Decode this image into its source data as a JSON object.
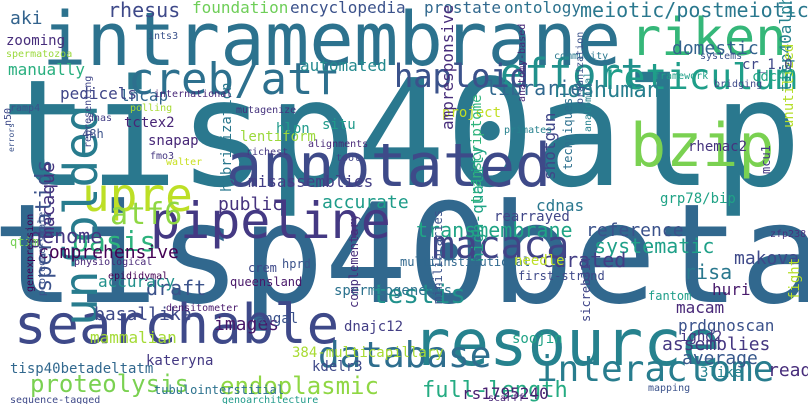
{
  "title": "",
  "words": [
    {
      "text": "tisp40alpha",
      "color": "#2a788e"
    },
    {
      "text": "tisp40beta",
      "color": "#31688e"
    },
    {
      "text": "intramembrane",
      "color": "#2c728e"
    },
    {
      "text": "annotated",
      "color": "#3e4a89"
    },
    {
      "text": "resource",
      "color": "#26828e"
    },
    {
      "text": "searchable",
      "color": "#3e4989"
    },
    {
      "text": "pipeline",
      "color": "#443983"
    },
    {
      "text": "creb/atf",
      "color": "#2d708e"
    },
    {
      "text": "bzip",
      "color": "#7ad151"
    },
    {
      "text": "riken",
      "color": "#35b779"
    },
    {
      "text": "upre",
      "color": "#bddf26"
    },
    {
      "text": "macaca",
      "color": "#414487"
    },
    {
      "text": "database",
      "color": "#2e6e8e"
    },
    {
      "text": "interactome",
      "color": "#287d8e"
    },
    {
      "text": "unfolded",
      "color": "#287c8e"
    },
    {
      "text": "effort",
      "color": "#21918c"
    },
    {
      "text": "reticulum",
      "color": "#1f9e89"
    },
    {
      "text": "haploid",
      "color": "#3b528b"
    },
    {
      "text": "atf6",
      "color": "#8fd744"
    },
    {
      "text": "full-length",
      "color": "#25ab82"
    },
    {
      "text": "endoplasmic",
      "color": "#8fd744"
    },
    {
      "text": "proteolysis",
      "color": "#7ad151"
    },
    {
      "text": "oasis",
      "color": "#2db27d"
    },
    {
      "text": "testis",
      "color": "#21918c"
    },
    {
      "text": "spermatids",
      "color": "#3b528b"
    },
    {
      "text": "transmembrane",
      "color": "#20a486"
    },
    {
      "text": "prostate",
      "color": "#31688e"
    },
    {
      "text": "meiotic/postmeiotic",
      "color": "#2a788e"
    },
    {
      "text": "genome",
      "color": "#453781"
    },
    {
      "text": "foundation",
      "color": "#6ece58"
    },
    {
      "text": "encyclopedia",
      "color": "#3b528b"
    },
    {
      "text": "ontology",
      "color": "#2c728e"
    },
    {
      "text": "domestic",
      "color": "#33638d"
    },
    {
      "text": "libraries",
      "color": "#31688e"
    },
    {
      "text": "nonhuman",
      "color": "#277f8e"
    },
    {
      "text": "automated",
      "color": "#23898e"
    },
    {
      "text": "manually",
      "color": "#29af7f"
    },
    {
      "text": "comprehensive",
      "color": "#440154"
    },
    {
      "text": "systematic",
      "color": "#1fa088"
    },
    {
      "text": "curated",
      "color": "#433e85"
    },
    {
      "text": "accurate",
      "color": "#1e9c89"
    },
    {
      "text": "misassemblies",
      "color": "#433e85"
    },
    {
      "text": "reference",
      "color": "#3b528b"
    },
    {
      "text": "spermiogenesis",
      "color": "#2c728e"
    },
    {
      "text": "macaque",
      "color": "#46337e"
    },
    {
      "text": "hybridization",
      "color": "#2a788e"
    },
    {
      "text": "lentiform",
      "color": "#9bd93c"
    },
    {
      "text": "public",
      "color": "#46337e"
    },
    {
      "text": "draft",
      "color": "#3b528b"
    },
    {
      "text": "accuracy",
      "color": "#21918c"
    },
    {
      "text": "images",
      "color": "#48186a"
    },
    {
      "text": "mammalian",
      "color": "#a5db36"
    },
    {
      "text": "basallike",
      "color": "#3e4a89"
    },
    {
      "text": "tisp40betadeltatm",
      "color": "#31688e"
    },
    {
      "text": "kateryna",
      "color": "#443983"
    },
    {
      "text": "assemblies",
      "color": "#453781"
    },
    {
      "text": "average",
      "color": "#38598c"
    },
    {
      "text": "read",
      "color": "#472d7b"
    },
    {
      "text": "rs1795240",
      "color": "#481f70"
    },
    {
      "text": "tisp40alphadeltatm",
      "color": "#26828e"
    },
    {
      "text": "rhesus",
      "color": "#3e4989"
    },
    {
      "text": "haploid",
      "color": "#3b528b"
    },
    {
      "text": "lncap",
      "color": "#32658e"
    },
    {
      "text": "pedicels",
      "color": "#404688"
    },
    {
      "text": "tctex2",
      "color": "#482576"
    },
    {
      "text": "snapap",
      "color": "#482878"
    },
    {
      "text": "hlpn",
      "color": "#1f9a8a"
    },
    {
      "text": "situ",
      "color": "#1f9a8a"
    },
    {
      "text": "project",
      "color": "#c2df23"
    },
    {
      "text": "ampresponsive",
      "color": "#472d7b"
    },
    {
      "text": "transcriptome",
      "color": "#2fb47c"
    },
    {
      "text": "high-quality",
      "color": "#20a486"
    },
    {
      "text": "rearrayed",
      "color": "#404688"
    },
    {
      "text": "cdnas",
      "color": "#2a778e"
    },
    {
      "text": "shotgun",
      "color": "#404688"
    },
    {
      "text": "techniques",
      "color": "#2d708e"
    },
    {
      "text": "rhemac2",
      "color": "#46337e"
    },
    {
      "text": "grp78/bip",
      "color": "#20a386"
    },
    {
      "text": "unutilized",
      "color": "#b5de2b"
    },
    {
      "text": "cr_1.0",
      "color": "#3f4788"
    },
    {
      "text": "cdc47",
      "color": "#21a685"
    },
    {
      "text": "aki",
      "color": "#33638d"
    },
    {
      "text": "zooming",
      "color": "#472d7b"
    },
    {
      "text": "qtim",
      "color": "#75d054"
    },
    {
      "text": "huri",
      "color": "#481a6c"
    },
    {
      "text": "risa",
      "color": "#2a788e"
    },
    {
      "text": "makova",
      "color": "#3e4989"
    },
    {
      "text": "macam",
      "color": "#482878"
    },
    {
      "text": "prdgnoscan",
      "color": "#3b528b"
    },
    {
      "text": "ighd2",
      "color": "#453781"
    },
    {
      "text": "sicreb314",
      "color": "#404688"
    },
    {
      "text": "soojin",
      "color": "#20a386"
    },
    {
      "text": "dnajc12",
      "color": "#433e85"
    },
    {
      "text": "angal",
      "color": "#3b528b"
    },
    {
      "text": "kdelr3",
      "color": "#3e4989"
    },
    {
      "text": "384-multicapillary",
      "color": "#a8db34"
    },
    {
      "text": "complementary",
      "color": "#472d7b"
    },
    {
      "text": "minilibraries",
      "color": "#3b528b"
    },
    {
      "text": "multiinstitutional",
      "color": "#31688e"
    },
    {
      "text": "crem",
      "color": "#3e4989"
    },
    {
      "text": "hprd",
      "color": "#3b528b"
    },
    {
      "text": "queensland",
      "color": "#481769"
    },
    {
      "text": "3like",
      "color": "#26828e"
    },
    {
      "text": "fight",
      "color": "#b5de2b"
    },
    {
      "text": "needle",
      "color": "#bddf26"
    },
    {
      "text": "first-strand",
      "color": "#3e4989"
    },
    {
      "text": "fantom",
      "color": "#1f9e89"
    },
    {
      "text": "sequence-tagged",
      "color": "#3e4989"
    },
    {
      "text": "tubulointerstitial",
      "color": "#2c728e"
    },
    {
      "text": "genoarchitecture",
      "color": "#1f9a8a"
    },
    {
      "text": "scarff",
      "color": "#482576"
    },
    {
      "text": "mapping",
      "color": "#3b528b"
    },
    {
      "text": "genexpression",
      "color": "#440154"
    },
    {
      "text": "proteome-scale",
      "color": "#3b528b"
    },
    {
      "text": "ints3",
      "color": "#3b528b"
    },
    {
      "text": "spermatozoa",
      "color": "#9bd93c"
    },
    {
      "text": "international",
      "color": "#482878"
    },
    {
      "text": "polling",
      "color": "#a8db34"
    },
    {
      "text": "fmo3",
      "color": "#453781"
    },
    {
      "text": "walter",
      "color": "#c8e020"
    },
    {
      "text": "mutagenize",
      "color": "#46337e"
    },
    {
      "text": "richest",
      "color": "#453781"
    },
    {
      "text": "alignments",
      "color": "#482878"
    },
    {
      "text": "tool",
      "color": "#414487"
    },
    {
      "text": "community",
      "color": "#2a788e"
    },
    {
      "text": "primates",
      "color": "#26828e"
    },
    {
      "text": "anatomy-based",
      "color": "#482878"
    },
    {
      "text": "organization",
      "color": "#3b528b"
    },
    {
      "text": "anatomical",
      "color": "#26828e"
    },
    {
      "text": "framework",
      "color": "#1fa088"
    },
    {
      "text": "bridging",
      "color": "#3e4989"
    },
    {
      "text": "systems",
      "color": "#3b528b"
    },
    {
      "text": "ramp4",
      "color": "#3b528b"
    },
    {
      "text": "n50",
      "color": "#3e4989"
    },
    {
      "text": "errors",
      "color": "#3b528b"
    },
    {
      "text": "physiological",
      "color": "#482878"
    },
    {
      "text": "epididymal",
      "color": "#440154"
    },
    {
      "text": "densitometer",
      "color": "#481a6c"
    },
    {
      "text": "zfp238",
      "color": "#46337e"
    },
    {
      "text": "mcu1",
      "color": "#443983"
    },
    {
      "text": "dnas",
      "color": "#433e85"
    },
    {
      "text": "48h",
      "color": "#3b528b"
    },
    {
      "text": "representing",
      "color": "#404688"
    }
  ]
}
